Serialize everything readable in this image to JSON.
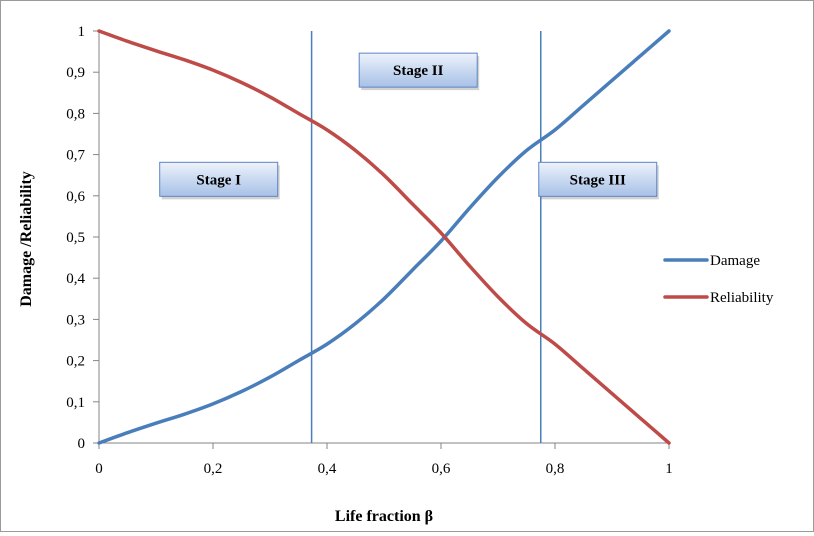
{
  "chart_data": {
    "type": "line",
    "xlabel": "Life fraction β",
    "ylabel": "Damage /Reliability",
    "xlim": [
      0,
      1
    ],
    "ylim": [
      0,
      1
    ],
    "x_ticks": [
      "0",
      "0,2",
      "0,4",
      "0,6",
      "0,8",
      "1"
    ],
    "x_tick_values": [
      0,
      0.2,
      0.4,
      0.6,
      0.8,
      1
    ],
    "y_ticks": [
      "0",
      "0,1",
      "0,2",
      "0,3",
      "0,4",
      "0,5",
      "0,6",
      "0,7",
      "0,8",
      "0,9",
      "1"
    ],
    "y_tick_values": [
      0,
      0.1,
      0.2,
      0.3,
      0.4,
      0.5,
      0.6,
      0.7,
      0.8,
      0.9,
      1
    ],
    "grid": false,
    "legend_position": "right",
    "series": [
      {
        "name": "Damage",
        "color": "#4a7ebb",
        "x": [
          0,
          0.05,
          0.1,
          0.15,
          0.2,
          0.25,
          0.3,
          0.35,
          0.4,
          0.45,
          0.5,
          0.55,
          0.6,
          0.65,
          0.7,
          0.75,
          0.8,
          0.85,
          0.9,
          0.95,
          1
        ],
        "y": [
          0,
          0.025,
          0.048,
          0.07,
          0.095,
          0.125,
          0.16,
          0.2,
          0.24,
          0.29,
          0.35,
          0.42,
          0.49,
          0.57,
          0.645,
          0.71,
          0.76,
          0.82,
          0.88,
          0.94,
          1
        ]
      },
      {
        "name": "Reliability",
        "color": "#be4b48",
        "x": [
          0,
          0.05,
          0.1,
          0.15,
          0.2,
          0.25,
          0.3,
          0.35,
          0.4,
          0.45,
          0.5,
          0.55,
          0.6,
          0.65,
          0.7,
          0.75,
          0.8,
          0.85,
          0.9,
          0.95,
          1
        ],
        "y": [
          1,
          0.975,
          0.952,
          0.93,
          0.905,
          0.875,
          0.84,
          0.8,
          0.76,
          0.71,
          0.65,
          0.58,
          0.51,
          0.43,
          0.355,
          0.29,
          0.24,
          0.18,
          0.12,
          0.06,
          0
        ]
      }
    ],
    "vertical_lines": {
      "color": "#4a7ebb",
      "x": [
        0.373,
        0.775
      ]
    },
    "stages": [
      {
        "label": "Stage I",
        "x": 0.21,
        "y": 0.64
      },
      {
        "label": "Stage II",
        "x": 0.56,
        "y": 0.905
      },
      {
        "label": "Stage III",
        "x": 0.875,
        "y": 0.64
      }
    ]
  }
}
